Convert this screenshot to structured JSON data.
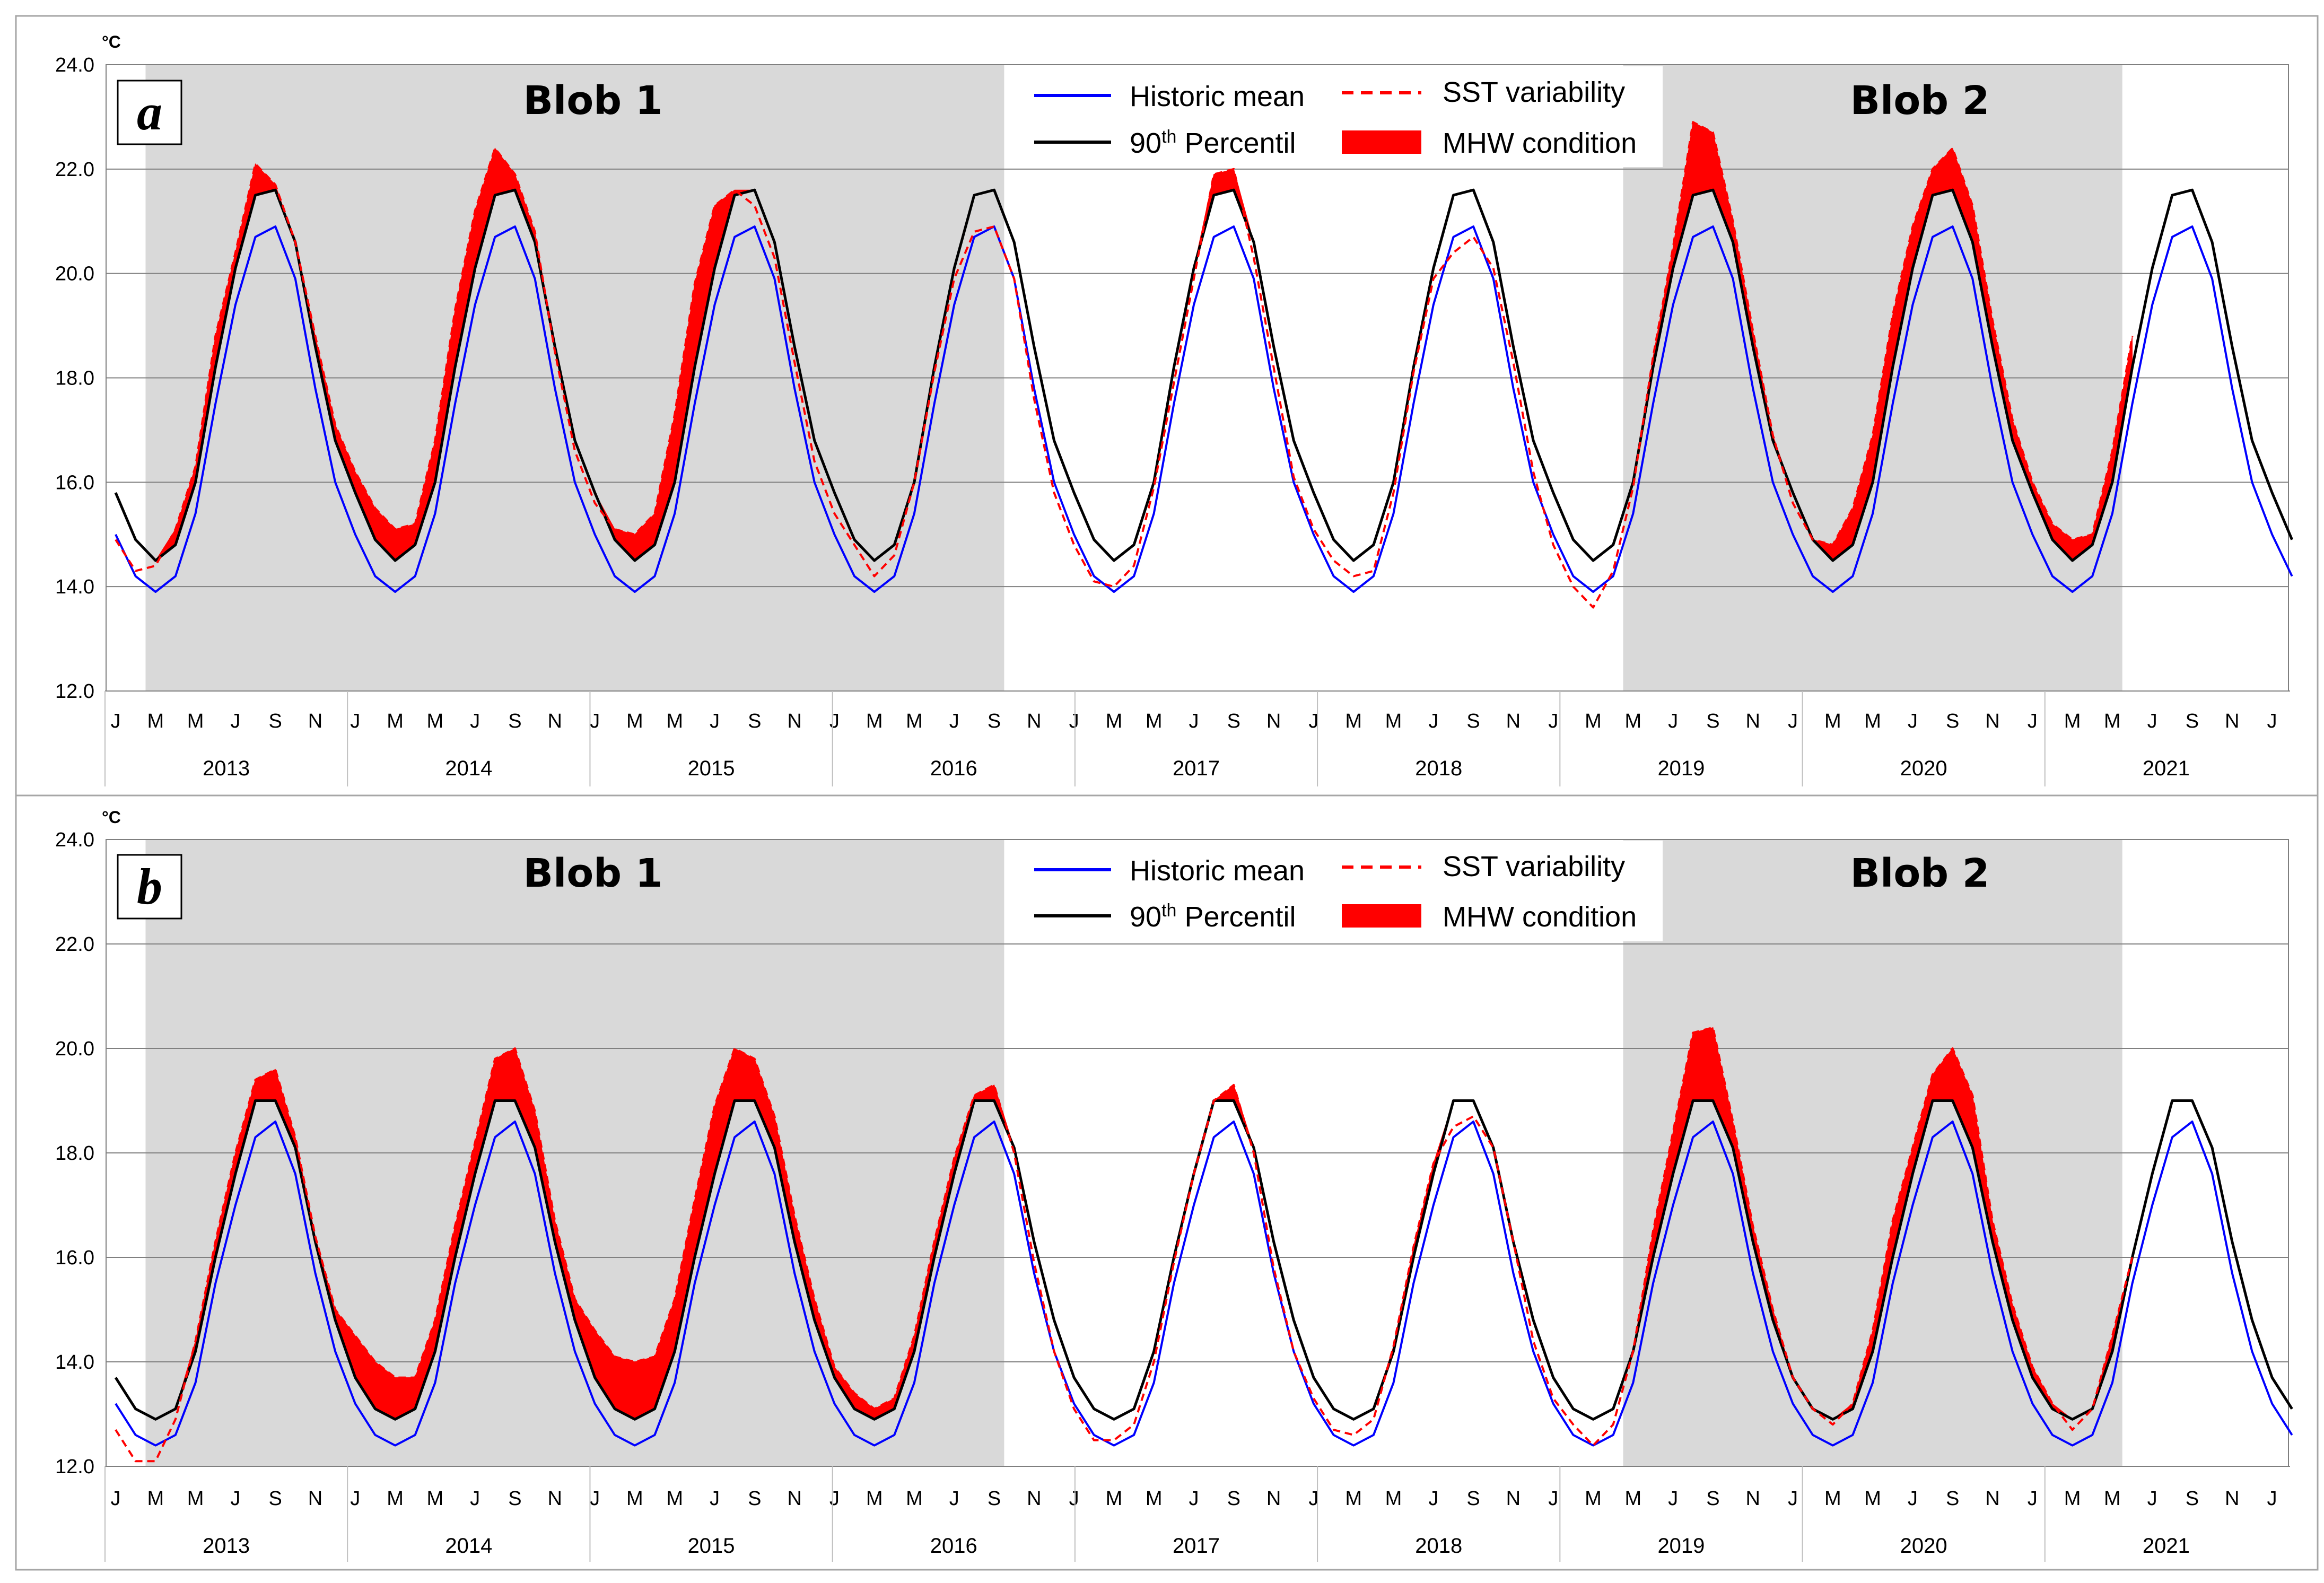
{
  "chart_data": {
    "type": "line",
    "unit": "°C",
    "x_years": [
      "2013",
      "2014",
      "2015",
      "2016",
      "2017",
      "2018",
      "2019",
      "2020",
      "2021"
    ],
    "x_month_ticks": [
      "J",
      "M",
      "M",
      "J",
      "S",
      "N"
    ],
    "legend": {
      "historic_mean": "Historic mean",
      "sst_variability": "SST variability",
      "percentile_base": "90",
      "percentile_sup": "th",
      "percentile_rest": " Percentil",
      "mhw_condition": "MHW condition"
    },
    "colors": {
      "historic_mean": "#0000ff",
      "percentile": "#000000",
      "sst": "#ff0000",
      "mhw": "#ff0000",
      "shade": "#d9d9d9",
      "grid": "#808080"
    },
    "panels": [
      {
        "id": "a",
        "ylim": [
          12,
          24
        ],
        "yticks": [
          "12.0",
          "14.0",
          "16.0",
          "18.0",
          "20.0",
          "22.0",
          "24.0"
        ],
        "blobs": [
          {
            "label": "Blob 1",
            "start_month": 2,
            "end_month": 44
          },
          {
            "label": "Blob 2",
            "start_month": 76,
            "end_month": 100
          }
        ],
        "climatology_mean": [
          15.0,
          14.2,
          13.9,
          14.2,
          15.4,
          17.5,
          19.4,
          20.7,
          20.9,
          19.9,
          17.8,
          16.0
        ],
        "climatology_p90": [
          15.8,
          14.9,
          14.5,
          14.8,
          16.0,
          18.2,
          20.1,
          21.5,
          21.6,
          20.6,
          18.6,
          16.8
        ],
        "sst_series": [
          14.9,
          14.3,
          14.4,
          15.1,
          16.3,
          18.8,
          20.4,
          22.1,
          21.7,
          20.6,
          18.8,
          17.1,
          16.2,
          15.5,
          15.1,
          15.2,
          16.8,
          19.3,
          21.2,
          22.4,
          21.9,
          20.8,
          18.5,
          16.6,
          15.6,
          15.1,
          15.0,
          15.4,
          17.3,
          19.8,
          21.3,
          21.6,
          21.3,
          20.3,
          18.3,
          16.4,
          15.4,
          14.8,
          14.2,
          14.6,
          16.0,
          18.1,
          19.9,
          20.8,
          20.9,
          19.9,
          17.6,
          15.8,
          14.8,
          14.1,
          14.0,
          14.4,
          15.9,
          17.9,
          19.9,
          21.9,
          22.0,
          20.3,
          18.2,
          16.1,
          15.1,
          14.5,
          14.2,
          14.3,
          15.8,
          18.1,
          19.9,
          20.4,
          20.7,
          20.1,
          18.3,
          16.2,
          14.8,
          14.0,
          13.6,
          14.3,
          15.9,
          18.4,
          20.5,
          22.9,
          22.7,
          21.0,
          18.9,
          16.9,
          15.6,
          14.9,
          14.8,
          15.5,
          16.9,
          19.2,
          20.9,
          22.0,
          22.4,
          21.3,
          19.1,
          17.2,
          16.0,
          15.2,
          14.9,
          15.0,
          16.6,
          18.8
        ]
      },
      {
        "id": "b",
        "ylim": [
          12,
          24
        ],
        "yticks": [
          "12.0",
          "14.0",
          "16.0",
          "18.0",
          "20.0",
          "22.0",
          "24.0"
        ],
        "blobs": [
          {
            "label": "Blob 1",
            "start_month": 2,
            "end_month": 44
          },
          {
            "label": "Blob 2",
            "start_month": 76,
            "end_month": 100
          }
        ],
        "climatology_mean": [
          13.2,
          12.6,
          12.4,
          12.6,
          13.6,
          15.5,
          17.0,
          18.3,
          18.6,
          17.6,
          15.7,
          14.2
        ],
        "climatology_p90": [
          13.7,
          13.1,
          12.9,
          13.1,
          14.2,
          16.0,
          17.6,
          19.0,
          19.0,
          18.1,
          16.3,
          14.8
        ],
        "sst_series": [
          12.7,
          12.1,
          12.1,
          12.9,
          14.4,
          16.3,
          18.0,
          19.4,
          19.6,
          18.3,
          16.4,
          15.0,
          14.5,
          14.0,
          13.7,
          13.7,
          14.8,
          16.6,
          18.2,
          19.8,
          20.0,
          18.8,
          16.7,
          15.2,
          14.6,
          14.1,
          14.0,
          14.1,
          15.2,
          17.1,
          18.9,
          20.0,
          19.8,
          18.7,
          16.8,
          15.2,
          13.9,
          13.4,
          13.1,
          13.3,
          14.5,
          16.3,
          17.9,
          19.1,
          19.3,
          18.0,
          15.9,
          14.2,
          13.1,
          12.5,
          12.5,
          12.8,
          14.0,
          15.9,
          17.6,
          19.0,
          19.3,
          18.0,
          15.8,
          14.2,
          13.3,
          12.7,
          12.6,
          12.9,
          14.3,
          16.2,
          17.8,
          18.5,
          18.7,
          18.1,
          16.3,
          14.4,
          13.3,
          12.8,
          12.4,
          12.8,
          14.2,
          16.5,
          18.4,
          20.3,
          20.4,
          18.6,
          16.6,
          15.0,
          13.7,
          13.1,
          12.8,
          13.2,
          14.6,
          16.7,
          18.1,
          19.5,
          20.0,
          19.1,
          16.7,
          15.1,
          13.9,
          13.2,
          12.7,
          13.1,
          14.5,
          16.0
        ]
      }
    ]
  }
}
